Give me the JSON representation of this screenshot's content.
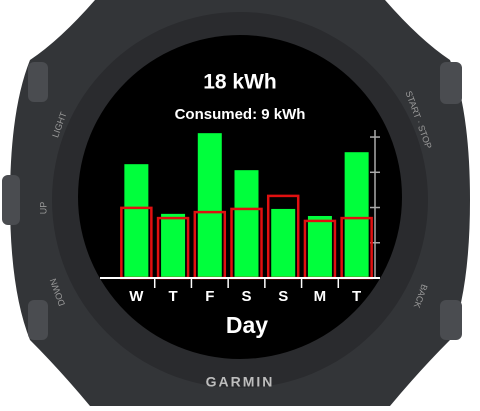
{
  "chart_data": {
    "type": "bar",
    "title": "18 kWh",
    "subtitle": "Consumed: 9 kWh",
    "x_label": "Day",
    "categories": [
      "W",
      "T",
      "F",
      "S",
      "S",
      "M",
      "T"
    ],
    "series": [
      {
        "color": "#00ff3c",
        "values": [
          3.23,
          1.82,
          4.11,
          3.06,
          1.96,
          1.76,
          3.57
        ]
      },
      {
        "color": "#e01010",
        "values": [
          1.99,
          1.7,
          1.87,
          1.96,
          2.33,
          1.62,
          1.7
        ]
      }
    ],
    "ylim": [
      0,
      4.2
    ],
    "yticks": [
      0,
      1,
      2,
      3,
      4
    ]
  },
  "device": {
    "brand": "GARMIN",
    "buttons": [
      "LIGHT",
      "UP",
      "DOWN",
      "START · STOP",
      "BACK"
    ]
  }
}
